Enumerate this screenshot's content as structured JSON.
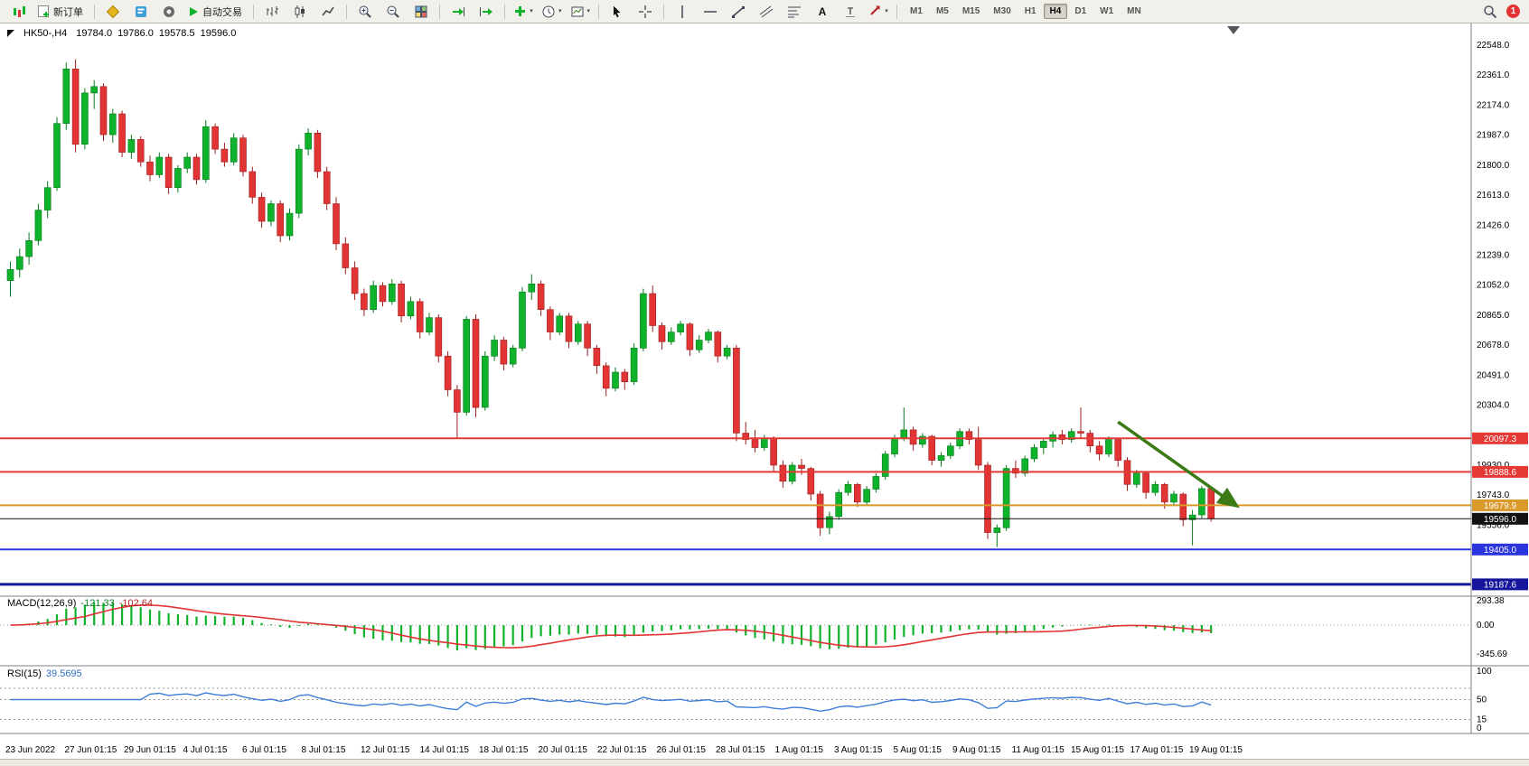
{
  "toolbar": {
    "new_order_label": "新订单",
    "auto_trading_label": "自动交易",
    "timeframes": [
      "M1",
      "M5",
      "M15",
      "M30",
      "H1",
      "H4",
      "D1",
      "W1",
      "MN"
    ],
    "active_timeframe": "H4",
    "notification_count": "1"
  },
  "chart": {
    "symbol_period": "HK50-,H4",
    "open": "19784.0",
    "high": "19786.0",
    "low": "19578.5",
    "close": "19596.0"
  },
  "indicators": {
    "macd": {
      "label": "MACD(12,26,9)",
      "value_main": "-121.33",
      "value_signal": "-102.64",
      "axis": [
        "293.38",
        "0.00",
        "-345.69"
      ]
    },
    "rsi": {
      "label": "RSI(15)",
      "value": "39.5695",
      "axis": [
        "100",
        "50",
        "15",
        "0"
      ],
      "levels": [
        70,
        50,
        15
      ]
    }
  },
  "chart_data": [
    {
      "type": "candlestick",
      "title": "HK50- H4",
      "y_ticks": [
        "22548.0",
        "22361.0",
        "22174.0",
        "21987.0",
        "21800.0",
        "21613.0",
        "21426.0",
        "21239.0",
        "21052.0",
        "20865.0",
        "20678.0",
        "20491.0",
        "20304.0",
        "19930.0",
        "19743.0",
        "19556.0"
      ],
      "price_lines": [
        {
          "label": "20097.3",
          "price": 20097.3,
          "color": "#e53935",
          "width": 2
        },
        {
          "label": "19888.6",
          "price": 19888.6,
          "color": "#e53935",
          "width": 2
        },
        {
          "label": "19679.9",
          "price": 19679.9,
          "color": "#d9992b",
          "width": 2
        },
        {
          "label": "19596.0",
          "price": 19596.0,
          "color": "#111111",
          "width": 1
        },
        {
          "label": "19405.0",
          "price": 19405.0,
          "color": "#2b35dd",
          "width": 2
        },
        {
          "label": "19187.6",
          "price": 19187.6,
          "color": "#15159b",
          "width": 3
        }
      ],
      "x_labels": [
        "23 Jun 2022",
        "27 Jun 01:15",
        "29 Jun 01:15",
        "4 Jul 01:15",
        "6 Jul 01:15",
        "8 Jul 01:15",
        "12 Jul 01:15",
        "14 Jul 01:15",
        "18 Jul 01:15",
        "20 Jul 01:15",
        "22 Jul 01:15",
        "26 Jul 01:15",
        "28 Jul 01:15",
        "1 Aug 01:15",
        "3 Aug 01:15",
        "5 Aug 01:15",
        "9 Aug 01:15",
        "11 Aug 01:15",
        "15 Aug 01:15",
        "17 Aug 01:15",
        "19 Aug 01:15"
      ],
      "arrow": {
        "from_index": 119,
        "from_price": 20200,
        "to_index": 132,
        "to_price": 19680,
        "color": "#3c7a16"
      },
      "candles": [
        [
          21080,
          21200,
          20980,
          21150
        ],
        [
          21150,
          21280,
          21100,
          21230
        ],
        [
          21230,
          21380,
          21180,
          21330
        ],
        [
          21330,
          21560,
          21300,
          21520
        ],
        [
          21520,
          21700,
          21470,
          21660
        ],
        [
          21660,
          22100,
          21640,
          22060
        ],
        [
          22060,
          22440,
          22020,
          22400
        ],
        [
          22400,
          22460,
          21880,
          21930
        ],
        [
          21930,
          22280,
          21900,
          22250
        ],
        [
          22250,
          22330,
          22150,
          22290
        ],
        [
          22290,
          22310,
          21950,
          21990
        ],
        [
          21990,
          22150,
          21940,
          22120
        ],
        [
          22120,
          22140,
          21850,
          21880
        ],
        [
          21880,
          21990,
          21840,
          21960
        ],
        [
          21960,
          21980,
          21790,
          21820
        ],
        [
          21820,
          21860,
          21700,
          21740
        ],
        [
          21740,
          21880,
          21720,
          21850
        ],
        [
          21850,
          21870,
          21620,
          21660
        ],
        [
          21660,
          21800,
          21630,
          21780
        ],
        [
          21780,
          21880,
          21750,
          21850
        ],
        [
          21850,
          21870,
          21680,
          21710
        ],
        [
          21710,
          22080,
          21690,
          22040
        ],
        [
          22040,
          22060,
          21870,
          21900
        ],
        [
          21900,
          21940,
          21790,
          21820
        ],
        [
          21820,
          22000,
          21800,
          21970
        ],
        [
          21970,
          21990,
          21730,
          21760
        ],
        [
          21760,
          21790,
          21560,
          21600
        ],
        [
          21600,
          21630,
          21410,
          21450
        ],
        [
          21450,
          21580,
          21420,
          21560
        ],
        [
          21560,
          21580,
          21320,
          21360
        ],
        [
          21360,
          21530,
          21330,
          21500
        ],
        [
          21500,
          21930,
          21470,
          21900
        ],
        [
          21900,
          22030,
          21860,
          22000
        ],
        [
          22000,
          22020,
          21720,
          21760
        ],
        [
          21760,
          21790,
          21520,
          21560
        ],
        [
          21560,
          21600,
          21270,
          21310
        ],
        [
          21310,
          21350,
          21120,
          21160
        ],
        [
          21160,
          21200,
          20960,
          21000
        ],
        [
          21000,
          21030,
          20860,
          20900
        ],
        [
          20900,
          21080,
          20880,
          21050
        ],
        [
          21050,
          21070,
          20920,
          20950
        ],
        [
          20950,
          21090,
          20930,
          21060
        ],
        [
          21060,
          21080,
          20820,
          20860
        ],
        [
          20860,
          20980,
          20840,
          20950
        ],
        [
          20950,
          20970,
          20720,
          20760
        ],
        [
          20760,
          20880,
          20740,
          20850
        ],
        [
          20850,
          20870,
          20570,
          20610
        ],
        [
          20610,
          20640,
          20360,
          20400
        ],
        [
          20400,
          20430,
          20100,
          20260
        ],
        [
          20260,
          20860,
          20240,
          20840
        ],
        [
          20840,
          20870,
          20230,
          20290
        ],
        [
          20290,
          20640,
          20270,
          20610
        ],
        [
          20610,
          20740,
          20580,
          20710
        ],
        [
          20710,
          20730,
          20520,
          20560
        ],
        [
          20560,
          20680,
          20540,
          20660
        ],
        [
          20660,
          21040,
          20640,
          21010
        ],
        [
          21010,
          21120,
          20960,
          21060
        ],
        [
          21060,
          21080,
          20860,
          20900
        ],
        [
          20900,
          20920,
          20710,
          20760
        ],
        [
          20760,
          20880,
          20740,
          20860
        ],
        [
          20860,
          20880,
          20660,
          20700
        ],
        [
          20700,
          20830,
          20680,
          20810
        ],
        [
          20810,
          20830,
          20610,
          20660
        ],
        [
          20660,
          20680,
          20500,
          20550
        ],
        [
          20550,
          20570,
          20360,
          20410
        ],
        [
          20410,
          20540,
          20390,
          20510
        ],
        [
          20510,
          20530,
          20400,
          20450
        ],
        [
          20450,
          20690,
          20430,
          20660
        ],
        [
          20660,
          21030,
          20640,
          21000
        ],
        [
          21000,
          21050,
          20760,
          20800
        ],
        [
          20800,
          20820,
          20650,
          20700
        ],
        [
          20700,
          20790,
          20680,
          20760
        ],
        [
          20760,
          20830,
          20740,
          20810
        ],
        [
          20810,
          20820,
          20610,
          20650
        ],
        [
          20650,
          20740,
          20630,
          20710
        ],
        [
          20710,
          20780,
          20690,
          20760
        ],
        [
          20760,
          20770,
          20570,
          20610
        ],
        [
          20610,
          20680,
          20590,
          20660
        ],
        [
          20660,
          20680,
          20080,
          20130
        ],
        [
          20130,
          20200,
          20060,
          20090
        ],
        [
          20090,
          20150,
          20010,
          20040
        ],
        [
          20040,
          20120,
          20020,
          20100
        ],
        [
          20100,
          20110,
          19890,
          19930
        ],
        [
          19930,
          19960,
          19790,
          19830
        ],
        [
          19830,
          19950,
          19810,
          19930
        ],
        [
          19930,
          19970,
          19870,
          19910
        ],
        [
          19910,
          19920,
          19710,
          19750
        ],
        [
          19750,
          19770,
          19490,
          19540
        ],
        [
          19540,
          19640,
          19500,
          19610
        ],
        [
          19610,
          19780,
          19590,
          19760
        ],
        [
          19760,
          19830,
          19740,
          19810
        ],
        [
          19810,
          19820,
          19670,
          19700
        ],
        [
          19700,
          19800,
          19680,
          19780
        ],
        [
          19780,
          19880,
          19760,
          19860
        ],
        [
          19860,
          20020,
          19840,
          20000
        ],
        [
          20000,
          20120,
          19980,
          20100
        ],
        [
          20100,
          20290,
          20080,
          20150
        ],
        [
          20150,
          20170,
          20020,
          20060
        ],
        [
          20060,
          20130,
          20040,
          20110
        ],
        [
          20110,
          20120,
          19930,
          19960
        ],
        [
          19960,
          20010,
          19920,
          19990
        ],
        [
          19990,
          20070,
          19970,
          20050
        ],
        [
          20050,
          20160,
          20030,
          20140
        ],
        [
          20140,
          20160,
          20060,
          20090
        ],
        [
          20090,
          20170,
          19900,
          19930
        ],
        [
          19930,
          19950,
          19470,
          19510
        ],
        [
          19510,
          19560,
          19420,
          19540
        ],
        [
          19540,
          19930,
          19520,
          19910
        ],
        [
          19910,
          19960,
          19850,
          19880
        ],
        [
          19880,
          19990,
          19860,
          19970
        ],
        [
          19970,
          20060,
          19950,
          20040
        ],
        [
          20040,
          20100,
          20000,
          20080
        ],
        [
          20080,
          20140,
          20040,
          20120
        ],
        [
          20120,
          20150,
          20060,
          20090
        ],
        [
          20090,
          20160,
          20070,
          20140
        ],
        [
          20140,
          20290,
          20100,
          20130
        ],
        [
          20130,
          20150,
          20010,
          20050
        ],
        [
          20050,
          20080,
          19960,
          20000
        ],
        [
          20000,
          20110,
          19980,
          20090
        ],
        [
          20090,
          20100,
          19920,
          19960
        ],
        [
          19960,
          19980,
          19770,
          19810
        ],
        [
          19810,
          19900,
          19790,
          19880
        ],
        [
          19880,
          19890,
          19720,
          19760
        ],
        [
          19760,
          19830,
          19740,
          19810
        ],
        [
          19810,
          19820,
          19660,
          19700
        ],
        [
          19700,
          19770,
          19680,
          19750
        ],
        [
          19750,
          19760,
          19550,
          19590
        ],
        [
          19590,
          19650,
          19430,
          19620
        ],
        [
          19620,
          19800,
          19600,
          19784
        ],
        [
          19784,
          19786,
          19578.5,
          19596
        ]
      ]
    },
    {
      "type": "bar",
      "name": "MACD",
      "params": [
        12,
        26,
        9
      ],
      "current_main": -121.33,
      "current_signal": -102.64,
      "ylim": [
        -345.69,
        293.38
      ]
    },
    {
      "type": "line",
      "name": "RSI",
      "params": [
        15
      ],
      "current": 39.5695,
      "ylim": [
        0,
        100
      ]
    }
  ]
}
